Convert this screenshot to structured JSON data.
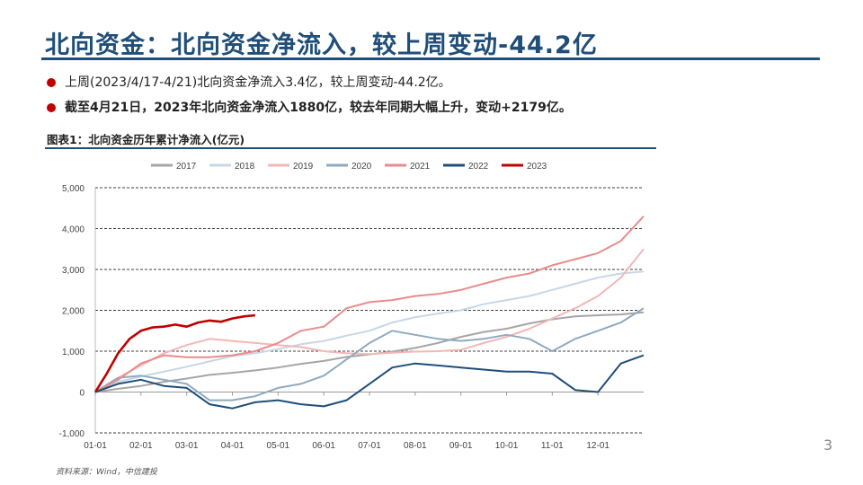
{
  "slide": {
    "title": "北向资金：北向资金净流入，较上周变动-44.2亿",
    "bullets": [
      "上周(2023/4/17-4/21)北向资金净流入3.4亿，较上周变动-44.2亿。",
      "截至4月21日，2023年北向资金净流入1880亿，较去年同期大幅上升，变动+2179亿。"
    ],
    "chart_caption": "图表1：北向资金历年累计净流入(亿元)",
    "source": "资料来源：Wind，中信建投",
    "page_number": "3"
  },
  "chart_data": {
    "type": "line",
    "title": "",
    "xlabel": "",
    "ylabel": "",
    "ylim": [
      -1000,
      5000
    ],
    "yticks": [
      "-1,000",
      "0",
      "1,000",
      "2,000",
      "3,000",
      "4,000",
      "5,000"
    ],
    "ytick_values": [
      -1000,
      0,
      1000,
      2000,
      3000,
      4000,
      5000
    ],
    "xlim": [
      0,
      12
    ],
    "xticks": [
      "01-01",
      "02-01",
      "03-01",
      "04-01",
      "05-01",
      "06-01",
      "07-01",
      "08-01",
      "09-01",
      "10-01",
      "11-01",
      "12-01"
    ],
    "x_unit": "months since 01-01",
    "grid": "horizontal dashed",
    "legend_position": "top",
    "series": [
      {
        "name": "2017",
        "color": "#a6a6a6",
        "x": [
          0,
          0.5,
          1,
          1.5,
          2,
          2.5,
          3,
          3.5,
          4,
          4.5,
          5,
          5.5,
          6,
          6.5,
          7,
          7.5,
          8,
          8.5,
          9,
          9.5,
          10,
          10.5,
          11,
          11.5,
          12
        ],
        "y": [
          0,
          80,
          150,
          250,
          330,
          420,
          470,
          530,
          600,
          690,
          760,
          860,
          920,
          990,
          1080,
          1200,
          1350,
          1470,
          1550,
          1680,
          1780,
          1850,
          1880,
          1900,
          1950
        ]
      },
      {
        "name": "2018",
        "color": "#c7d7e6",
        "x": [
          0,
          0.5,
          1,
          1.5,
          2,
          2.5,
          3,
          3.5,
          4,
          4.5,
          5,
          5.5,
          6,
          6.5,
          7,
          7.5,
          8,
          8.5,
          9,
          9.5,
          10,
          10.5,
          11,
          11.5,
          12
        ],
        "y": [
          0,
          250,
          380,
          500,
          620,
          750,
          880,
          950,
          1050,
          1170,
          1250,
          1380,
          1500,
          1700,
          1830,
          1920,
          2000,
          2150,
          2250,
          2350,
          2500,
          2650,
          2800,
          2900,
          2950
        ]
      },
      {
        "name": "2019",
        "color": "#f4b6b6",
        "x": [
          0,
          0.5,
          1,
          1.5,
          2,
          2.5,
          3,
          3.5,
          4,
          4.5,
          5,
          5.5,
          6,
          6.5,
          7,
          7.5,
          8,
          8.5,
          9,
          9.5,
          10,
          10.5,
          11,
          11.5,
          12
        ],
        "y": [
          0,
          350,
          650,
          950,
          1150,
          1300,
          1250,
          1200,
          1150,
          1100,
          1000,
          950,
          930,
          960,
          990,
          1000,
          1030,
          1200,
          1350,
          1550,
          1800,
          2050,
          2350,
          2800,
          3500
        ]
      },
      {
        "name": "2020",
        "color": "#8faabf",
        "x": [
          0,
          0.5,
          1,
          1.5,
          2,
          2.5,
          3,
          3.5,
          4,
          4.5,
          5,
          5.5,
          6,
          6.5,
          7,
          7.5,
          8,
          8.5,
          9,
          9.5,
          10,
          10.5,
          11,
          11.5,
          12
        ],
        "y": [
          0,
          350,
          400,
          300,
          200,
          -200,
          -200,
          -100,
          100,
          200,
          400,
          800,
          1200,
          1500,
          1400,
          1300,
          1250,
          1300,
          1400,
          1300,
          1000,
          1300,
          1500,
          1700,
          2050
        ]
      },
      {
        "name": "2021",
        "color": "#e88c8c",
        "x": [
          0,
          0.5,
          1,
          1.5,
          2,
          2.5,
          3,
          3.5,
          4,
          4.5,
          5,
          5.5,
          6,
          6.5,
          7,
          7.5,
          8,
          8.5,
          9,
          9.5,
          10,
          10.5,
          11,
          11.5,
          12
        ],
        "y": [
          0,
          300,
          700,
          900,
          850,
          850,
          900,
          1000,
          1200,
          1500,
          1600,
          2050,
          2200,
          2250,
          2350,
          2400,
          2500,
          2650,
          2800,
          2900,
          3100,
          3250,
          3400,
          3700,
          4300
        ]
      },
      {
        "name": "2022",
        "color": "#1f4e79",
        "x": [
          0,
          0.5,
          1,
          1.5,
          2,
          2.5,
          3,
          3.5,
          4,
          4.5,
          5,
          5.5,
          6,
          6.5,
          7,
          7.5,
          8,
          8.5,
          9,
          9.5,
          10,
          10.5,
          11,
          11.5,
          12
        ],
        "y": [
          0,
          200,
          300,
          150,
          100,
          -300,
          -400,
          -250,
          -200,
          -300,
          -350,
          -200,
          200,
          600,
          700,
          650,
          600,
          550,
          500,
          500,
          450,
          50,
          0,
          700,
          900
        ]
      },
      {
        "name": "2023",
        "color": "#c00000",
        "x": [
          0,
          0.25,
          0.5,
          0.75,
          1,
          1.25,
          1.5,
          1.75,
          2,
          2.25,
          2.5,
          2.75,
          3,
          3.25,
          3.5
        ],
        "y": [
          0,
          450,
          950,
          1300,
          1500,
          1580,
          1600,
          1650,
          1600,
          1700,
          1750,
          1720,
          1800,
          1850,
          1880
        ]
      }
    ]
  }
}
